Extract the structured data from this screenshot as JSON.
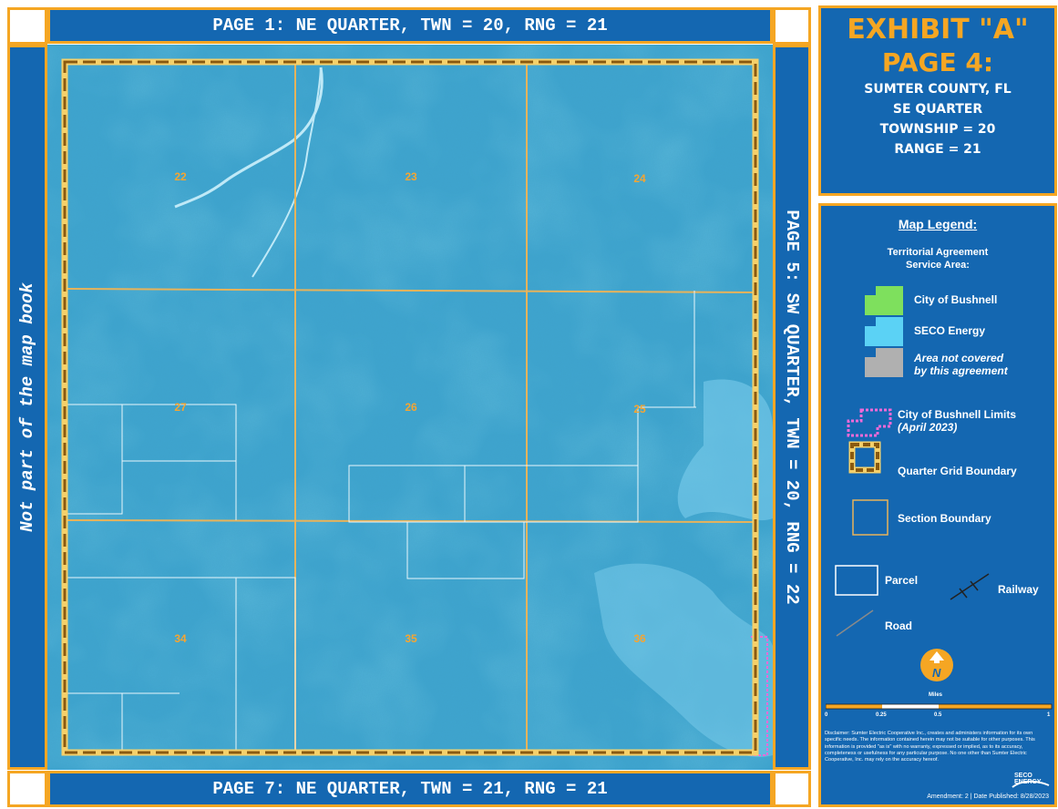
{
  "banners": {
    "top": "PAGE 1: NE QUARTER, TWN = 20, RNG = 21",
    "bottom": "PAGE 7: NE QUARTER, TWN = 21, RNG = 21",
    "left": "Not part of the map book",
    "right": "PAGE 5: SW QUARTER, TWN = 20, RNG = 22"
  },
  "sections": [
    "22",
    "23",
    "24",
    "27",
    "26",
    "25",
    "34",
    "35",
    "36"
  ],
  "title": {
    "exhibit": "EXHIBIT \"A\"",
    "page": "PAGE 4:",
    "county": "SUMTER COUNTY, FL",
    "quarter": "SE QUARTER",
    "township": "TOWNSHIP = 20",
    "range": "RANGE = 21"
  },
  "legend": {
    "title": "Map Legend:",
    "subtitle": "Territorial Agreement Service Area:",
    "items": {
      "bushnell": "City of Bushnell",
      "seco": "SECO Energy",
      "not_covered_1": "Area not covered",
      "not_covered_2": "by this agreement",
      "limits_1": "City of Bushnell Limits",
      "limits_2": "(April 2023)",
      "quarter_grid": "Quarter Grid Boundary",
      "section_boundary": "Section Boundary",
      "parcel": "Parcel",
      "railway": "Railway",
      "road": "Road"
    },
    "north_letter": "N",
    "scale": {
      "unit": "Miles",
      "ticks": [
        "0",
        "0.25",
        "0.5",
        "1"
      ]
    },
    "disclaimer": "Disclaimer: Sumter Electric Cooperative Inc., creates and administers information for its own specific needs. The information contained herein may not be suitable for other purposes. This information is provided \"as is\" with no warranty, expressed or implied, as to its accuracy, completeness or usefulness for any particular purpose. No one other than Sumter Electric Cooperative, Inc. may rely on the accuracy hereof.",
    "logo_text": "SECO ENERGY",
    "amendment": "Amendment: 2 | Date Published: 8/28/2023"
  },
  "colors": {
    "panel_blue": "#1467b1",
    "accent_orange": "#f5a623",
    "bushnell_green": "#7ee05d",
    "seco_cyan": "#5bd2f5",
    "not_covered_gray": "#b0b0b0",
    "limits_pink": "#f06ad8",
    "quarter_brown": "#8a5a10"
  }
}
